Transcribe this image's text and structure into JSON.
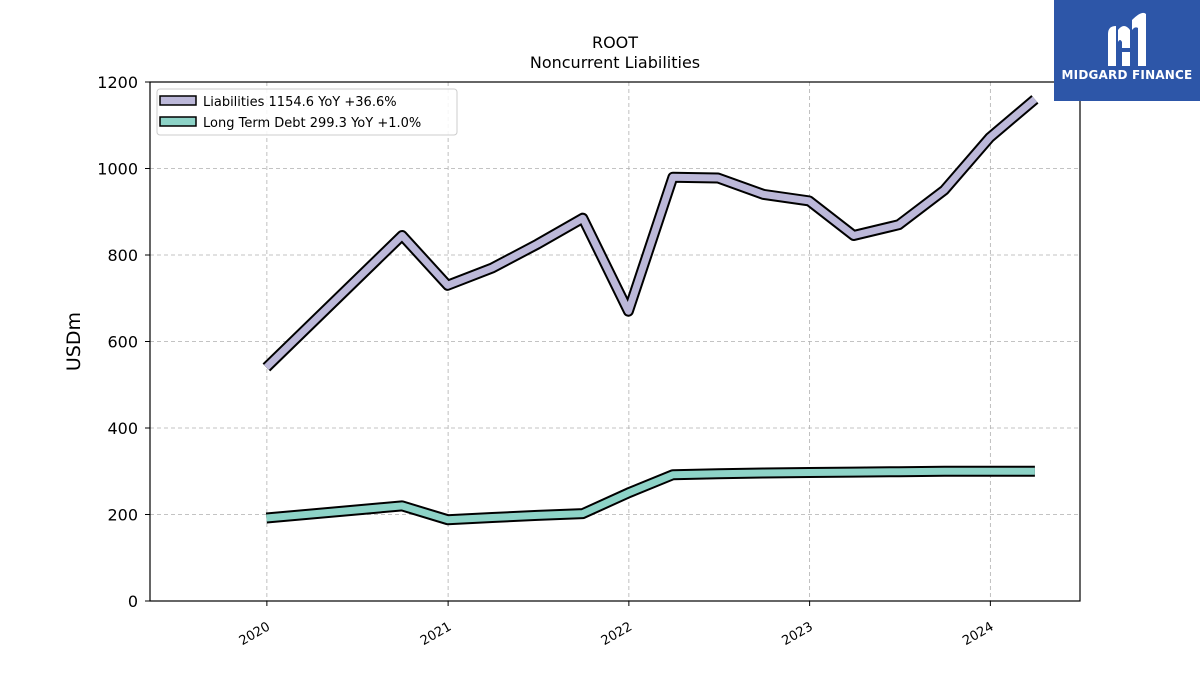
{
  "brand": {
    "name": "MIDGARD FINANCE",
    "color": "#2d56a8"
  },
  "chart_data": {
    "type": "line",
    "title": "ROOT",
    "subtitle": "Noncurrent  Liabilities",
    "ylabel": "USDm",
    "xlabel": "",
    "ylim": [
      0,
      1200
    ],
    "yticks": [
      0,
      200,
      400,
      600,
      800,
      1000,
      1200
    ],
    "xticks": [
      "2020",
      "2021",
      "2022",
      "2023",
      "2024"
    ],
    "grid": true,
    "legend_position": "top-left",
    "x": [
      "2019-12-31",
      "2020-09-30",
      "2020-12-31",
      "2021-03-31",
      "2021-06-30",
      "2021-09-30",
      "2021-12-31",
      "2022-03-31",
      "2022-06-30",
      "2022-09-30",
      "2022-12-31",
      "2023-03-31",
      "2023-06-30",
      "2023-09-30",
      "2023-12-31",
      "2024-03-31"
    ],
    "series": [
      {
        "name": "Liabilities",
        "legend_label": "Liabilities  1154.6 YoY +36.6%",
        "color": "#bcb8d9",
        "values": [
          540,
          845,
          730,
          770,
          825,
          885,
          670,
          980,
          978,
          940,
          925,
          845,
          870,
          950,
          1072,
          1160
        ]
      },
      {
        "name": "Long Term Debt",
        "legend_label": "Long Term Debt  299.3 YoY +1.0%",
        "color": "#8dd3c7",
        "values": [
          192,
          220,
          188,
          193,
          198,
          202,
          250,
          292,
          294,
          296,
          297,
          298,
          299,
          300,
          300,
          300
        ]
      }
    ]
  }
}
